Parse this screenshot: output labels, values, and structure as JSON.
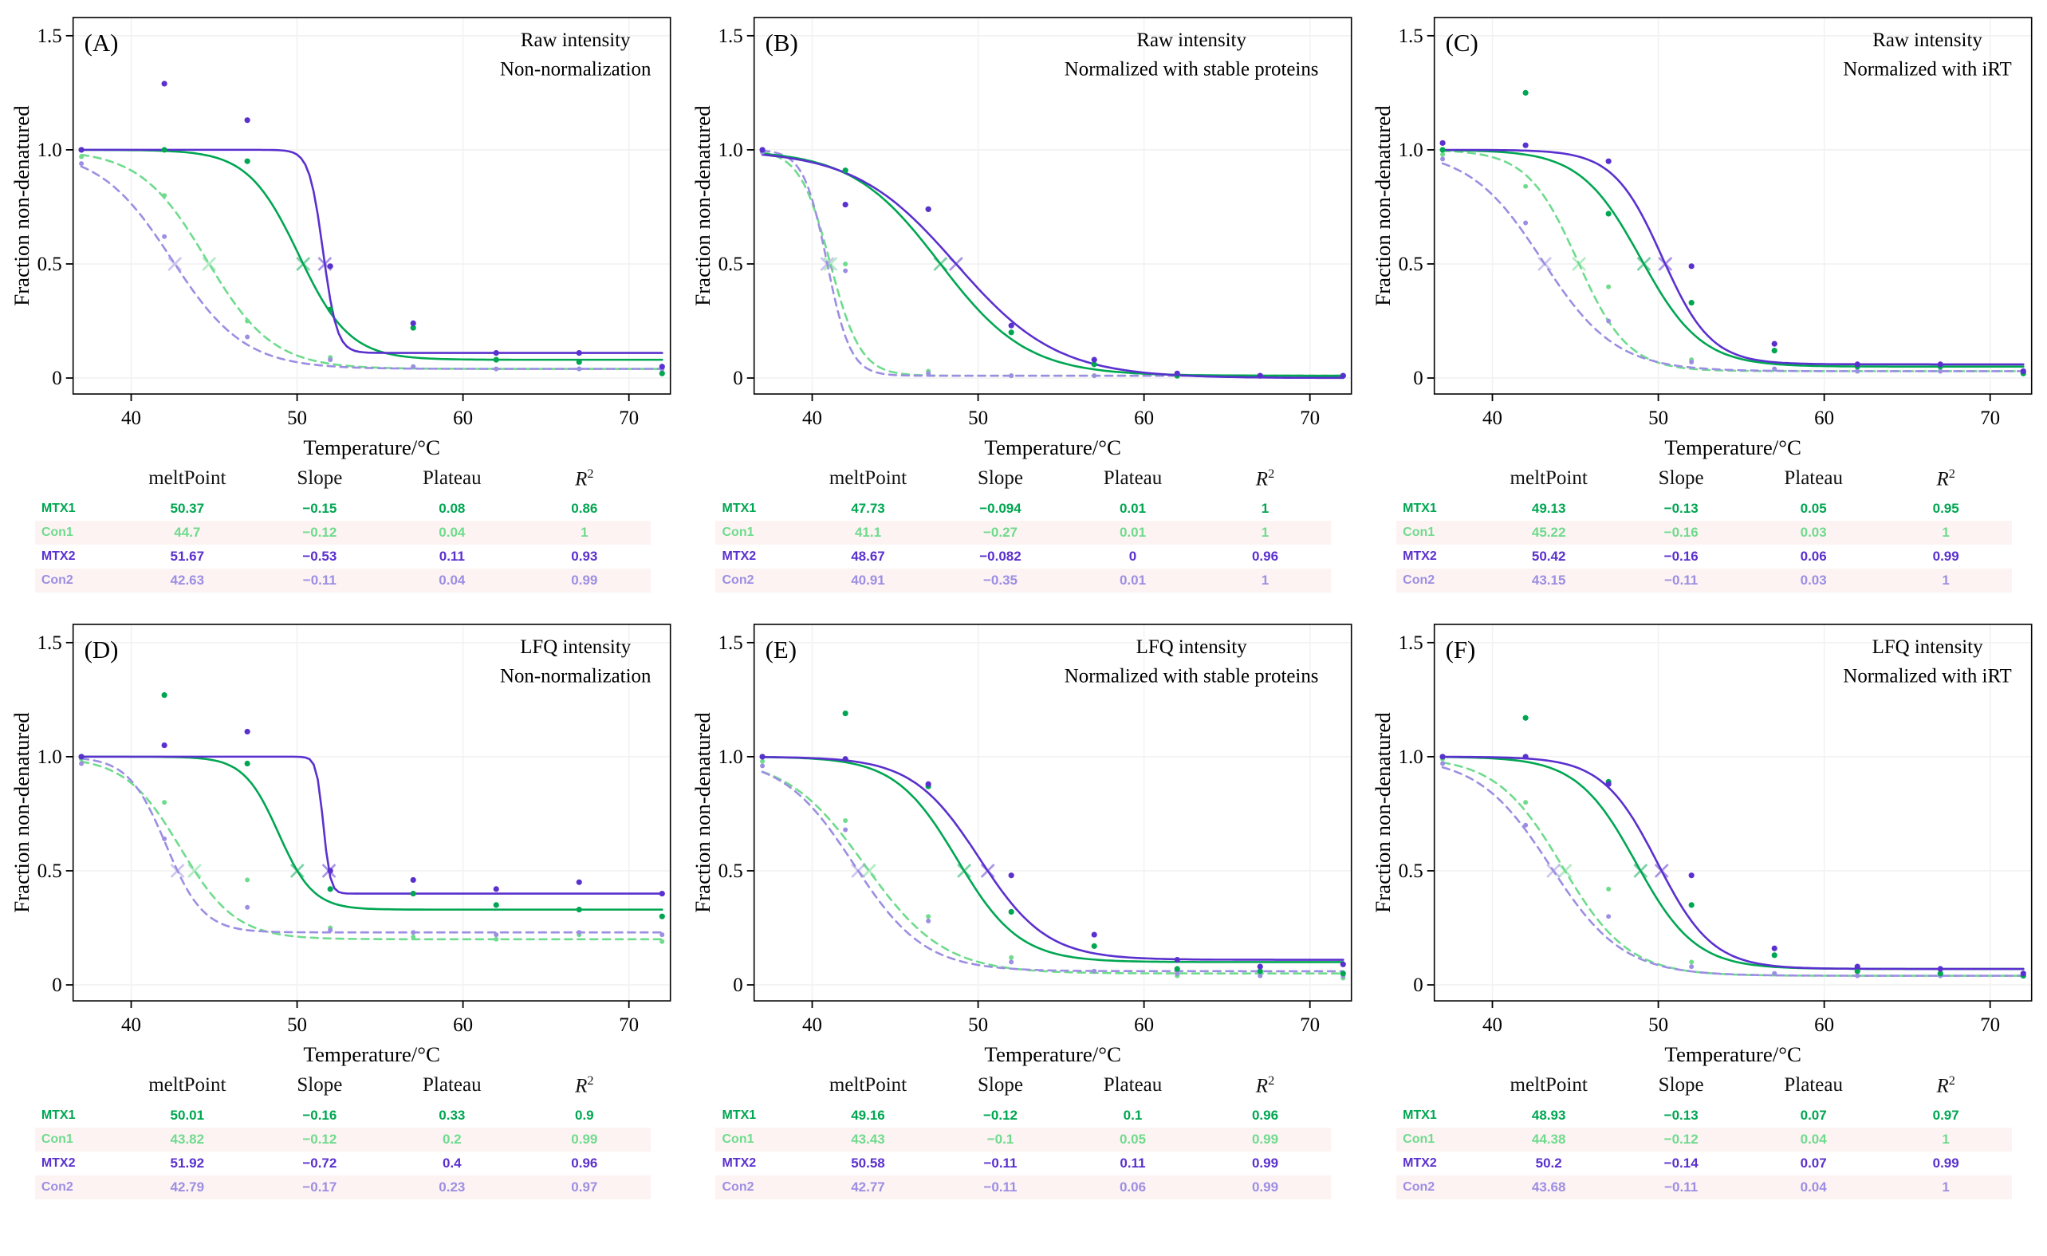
{
  "chart_common": {
    "xlabel": "Temperature/°C",
    "ylabel": "Fraction non-denatured",
    "xticks": [
      40,
      50,
      60,
      70
    ],
    "ytick_vals": [
      0,
      0.5,
      1.0,
      1.5
    ],
    "ytick_labels": [
      "0",
      "0.5",
      "1.0",
      "1.5"
    ],
    "xlim": [
      36.5,
      72.5
    ],
    "ylim": [
      -0.07,
      1.58
    ],
    "grid": true,
    "legend_position": "none",
    "sample_temps": [
      37,
      42,
      47,
      52,
      57,
      62,
      67,
      72
    ],
    "table_headers": [
      "",
      "meltPoint",
      "Slope",
      "Plateau",
      "R²"
    ],
    "series_colors": {
      "MTX1": "#00A651",
      "Con1": "#6FDB8D",
      "MTX2": "#5A30CE",
      "Con2": "#9C8EE2"
    },
    "marker_y": 0.5
  },
  "chart_data": [
    {
      "type": "line",
      "label": "(A)",
      "title_lines": [
        "Raw intensity",
        "Non-normalization"
      ],
      "series": [
        {
          "name": "MTX1",
          "meltPoint": "50.37",
          "slope": "−0.15",
          "plateau": "0.08",
          "r2": "0.86",
          "dashed": false,
          "points": [
            1.0,
            1.0,
            0.95,
            0.3,
            0.22,
            0.08,
            0.07,
            0.02
          ]
        },
        {
          "name": "Con1",
          "meltPoint": "44.7",
          "slope": "−0.12",
          "plateau": "0.04",
          "r2": "1",
          "dashed": true,
          "points": [
            0.97,
            0.8,
            0.25,
            0.09,
            0.05,
            0.04,
            0.04,
            0.04
          ]
        },
        {
          "name": "MTX2",
          "meltPoint": "51.67",
          "slope": "−0.53",
          "plateau": "0.11",
          "r2": "0.93",
          "dashed": false,
          "points": [
            1.0,
            1.29,
            1.13,
            0.49,
            0.24,
            0.11,
            0.11,
            0.05
          ]
        },
        {
          "name": "Con2",
          "meltPoint": "42.63",
          "slope": "−0.11",
          "plateau": "0.04",
          "r2": "0.99",
          "dashed": true,
          "points": [
            0.94,
            0.62,
            0.18,
            0.08,
            0.05,
            0.04,
            0.04,
            0.04
          ]
        }
      ]
    },
    {
      "type": "line",
      "label": "(B)",
      "title_lines": [
        "Raw intensity",
        "Normalized with stable proteins"
      ],
      "series": [
        {
          "name": "MTX1",
          "meltPoint": "47.73",
          "slope": "−0.094",
          "plateau": "0.01",
          "r2": "1",
          "dashed": false,
          "points": [
            1.0,
            0.91,
            0.74,
            0.2,
            0.06,
            0.01,
            0.01,
            0.01
          ]
        },
        {
          "name": "Con1",
          "meltPoint": "41.1",
          "slope": "−0.27",
          "plateau": "0.01",
          "r2": "1",
          "dashed": true,
          "points": [
            0.99,
            0.5,
            0.03,
            0.01,
            0.01,
            0.01,
            0.01,
            0.01
          ]
        },
        {
          "name": "MTX2",
          "meltPoint": "48.67",
          "slope": "−0.082",
          "plateau": "0",
          "r2": "0.96",
          "dashed": false,
          "points": [
            1.0,
            0.76,
            0.74,
            0.23,
            0.08,
            0.02,
            0.01,
            0.01
          ]
        },
        {
          "name": "Con2",
          "meltPoint": "40.91",
          "slope": "−0.35",
          "plateau": "0.01",
          "r2": "1",
          "dashed": true,
          "points": [
            0.99,
            0.47,
            0.02,
            0.01,
            0.01,
            0.01,
            0.01,
            0.01
          ]
        }
      ]
    },
    {
      "type": "line",
      "label": "(C)",
      "title_lines": [
        "Raw intensity",
        "Normalized with iRT"
      ],
      "series": [
        {
          "name": "MTX1",
          "meltPoint": "49.13",
          "slope": "−0.13",
          "plateau": "0.05",
          "r2": "0.95",
          "dashed": false,
          "points": [
            1.0,
            1.25,
            0.72,
            0.33,
            0.12,
            0.05,
            0.05,
            0.02
          ]
        },
        {
          "name": "Con1",
          "meltPoint": "45.22",
          "slope": "−0.16",
          "plateau": "0.03",
          "r2": "1",
          "dashed": true,
          "points": [
            0.98,
            0.84,
            0.4,
            0.08,
            0.04,
            0.03,
            0.03,
            0.03
          ]
        },
        {
          "name": "MTX2",
          "meltPoint": "50.42",
          "slope": "−0.16",
          "plateau": "0.06",
          "r2": "0.99",
          "dashed": false,
          "points": [
            1.03,
            1.02,
            0.95,
            0.49,
            0.15,
            0.06,
            0.06,
            0.03
          ]
        },
        {
          "name": "Con2",
          "meltPoint": "43.15",
          "slope": "−0.11",
          "plateau": "0.03",
          "r2": "1",
          "dashed": true,
          "points": [
            0.96,
            0.68,
            0.25,
            0.07,
            0.04,
            0.03,
            0.03,
            0.03
          ]
        }
      ]
    },
    {
      "type": "line",
      "label": "(D)",
      "title_lines": [
        "LFQ intensity",
        "Non-normalization"
      ],
      "series": [
        {
          "name": "MTX1",
          "meltPoint": "50.01",
          "slope": "−0.16",
          "plateau": "0.33",
          "r2": "0.9",
          "dashed": false,
          "points": [
            1.0,
            1.27,
            0.97,
            0.42,
            0.4,
            0.35,
            0.33,
            0.3
          ]
        },
        {
          "name": "Con1",
          "meltPoint": "43.82",
          "slope": "−0.12",
          "plateau": "0.2",
          "r2": "0.99",
          "dashed": true,
          "points": [
            0.99,
            0.8,
            0.46,
            0.25,
            0.21,
            0.2,
            0.22,
            0.19
          ]
        },
        {
          "name": "MTX2",
          "meltPoint": "51.92",
          "slope": "−0.72",
          "plateau": "0.4",
          "r2": "0.96",
          "dashed": false,
          "points": [
            1.0,
            1.05,
            1.11,
            0.5,
            0.46,
            0.42,
            0.45,
            0.4
          ]
        },
        {
          "name": "Con2",
          "meltPoint": "42.79",
          "slope": "−0.17",
          "plateau": "0.23",
          "r2": "0.97",
          "dashed": true,
          "points": [
            0.97,
            0.64,
            0.34,
            0.24,
            0.23,
            0.22,
            0.23,
            0.22
          ]
        }
      ]
    },
    {
      "type": "line",
      "label": "(E)",
      "title_lines": [
        "LFQ intensity",
        "Normalized with stable proteins"
      ],
      "series": [
        {
          "name": "MTX1",
          "meltPoint": "49.16",
          "slope": "−0.12",
          "plateau": "0.1",
          "r2": "0.96",
          "dashed": false,
          "points": [
            1.0,
            1.19,
            0.87,
            0.32,
            0.17,
            0.07,
            0.06,
            0.05
          ]
        },
        {
          "name": "Con1",
          "meltPoint": "43.43",
          "slope": "−0.1",
          "plateau": "0.05",
          "r2": "0.99",
          "dashed": true,
          "points": [
            0.98,
            0.72,
            0.3,
            0.12,
            0.06,
            0.04,
            0.04,
            0.03
          ]
        },
        {
          "name": "MTX2",
          "meltPoint": "50.58",
          "slope": "−0.11",
          "plateau": "0.11",
          "r2": "0.99",
          "dashed": false,
          "points": [
            1.0,
            0.99,
            0.88,
            0.48,
            0.22,
            0.11,
            0.08,
            0.09
          ]
        },
        {
          "name": "Con2",
          "meltPoint": "42.77",
          "slope": "−0.11",
          "plateau": "0.06",
          "r2": "0.99",
          "dashed": true,
          "points": [
            0.96,
            0.68,
            0.28,
            0.1,
            0.06,
            0.05,
            0.04,
            0.04
          ]
        }
      ]
    },
    {
      "type": "line",
      "label": "(F)",
      "title_lines": [
        "LFQ intensity",
        "Normalized with iRT"
      ],
      "series": [
        {
          "name": "MTX1",
          "meltPoint": "48.93",
          "slope": "−0.13",
          "plateau": "0.07",
          "r2": "0.97",
          "dashed": false,
          "points": [
            1.0,
            1.17,
            0.89,
            0.35,
            0.13,
            0.06,
            0.05,
            0.04
          ]
        },
        {
          "name": "Con1",
          "meltPoint": "44.38",
          "slope": "−0.12",
          "plateau": "0.04",
          "r2": "1",
          "dashed": true,
          "points": [
            0.99,
            0.8,
            0.42,
            0.1,
            0.05,
            0.04,
            0.04,
            0.04
          ]
        },
        {
          "name": "MTX2",
          "meltPoint": "50.2",
          "slope": "−0.14",
          "plateau": "0.07",
          "r2": "0.99",
          "dashed": false,
          "points": [
            1.0,
            1.0,
            0.88,
            0.48,
            0.16,
            0.08,
            0.07,
            0.05
          ]
        },
        {
          "name": "Con2",
          "meltPoint": "43.68",
          "slope": "−0.11",
          "plateau": "0.04",
          "r2": "1",
          "dashed": true,
          "points": [
            0.97,
            0.7,
            0.3,
            0.08,
            0.05,
            0.04,
            0.04,
            0.04
          ]
        }
      ]
    }
  ]
}
